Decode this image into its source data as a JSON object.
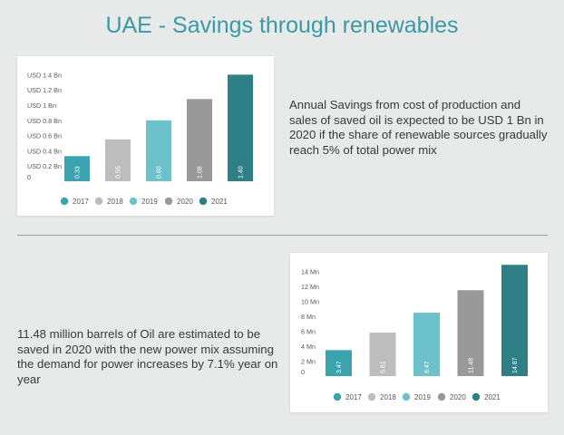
{
  "page": {
    "title": "UAE - Savings through renewables"
  },
  "text": {
    "savings": "Annual Savings from cost of production and sales of saved oil is expected to be USD 1 Bn in 2020 if the share of renewable sources gradually reach 5% of total power mix",
    "oil": "11.48 million barrels of Oil are estimated to be saved in 2020 with the new power mix assuming the demand for power increases by 7.1% year on year"
  },
  "chart_data": [
    {
      "type": "bar",
      "categories": [
        "2017",
        "2018",
        "2019",
        "2020",
        "2021"
      ],
      "values": [
        0.33,
        0.55,
        0.8,
        1.08,
        1.4
      ],
      "value_labels": [
        "0.33",
        "0.55",
        "0.80",
        "1.08",
        "1.40"
      ],
      "yticks": [
        0,
        0.2,
        0.4,
        0.6,
        0.8,
        1.0,
        1.2,
        1.4
      ],
      "ytick_labels": [
        "0",
        "USD 0.2 Bn",
        "USD 0.4 Bn",
        "USD 0.6 Bn",
        "USD 0.8 Bn",
        "USD 1 Bn",
        "USD 1.2 Bn",
        "USD 1.4 Bn"
      ],
      "ylim": [
        0,
        1.5
      ],
      "grid": false,
      "legend": "bottom",
      "colors": [
        "#3aa3ae",
        "#bdbdbd",
        "#6cc1cb",
        "#999999",
        "#2f7f86"
      ]
    },
    {
      "type": "bar",
      "categories": [
        "2017",
        "2018",
        "2019",
        "2020",
        "2021"
      ],
      "values": [
        3.47,
        5.81,
        8.47,
        11.48,
        14.87
      ],
      "value_labels": [
        "3.47",
        "5.81",
        "8.47",
        "11.48",
        "14.87"
      ],
      "yticks": [
        0,
        2,
        4,
        6,
        8,
        10,
        12,
        14
      ],
      "ytick_labels": [
        "0",
        "2 Mn",
        "4 Mn",
        "6 Mn",
        "8 Mn",
        "10 Mn",
        "12 Mn",
        "14 Mn"
      ],
      "ylim": [
        0,
        15.5
      ],
      "grid": false,
      "legend": "bottom",
      "colors": [
        "#3aa3ae",
        "#bdbdbd",
        "#6cc1cb",
        "#999999",
        "#2f7f86"
      ]
    }
  ]
}
